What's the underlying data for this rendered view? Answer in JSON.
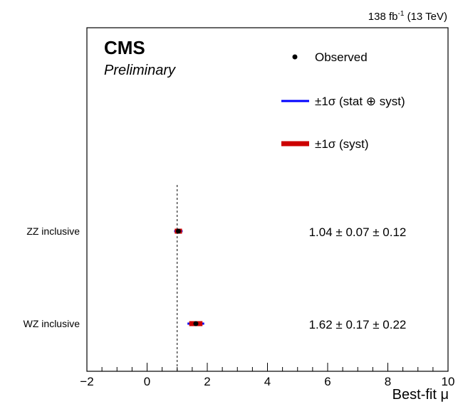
{
  "chart_data": {
    "type": "scatter",
    "lumi": "138 fb",
    "lumi_exp": "-1",
    "energy": "(13 TeV)",
    "experiment": "CMS",
    "status": "Preliminary",
    "xlabel": "Best-fit μ",
    "xlim": [
      -2,
      10
    ],
    "xticks": [
      -2,
      0,
      2,
      4,
      6,
      8,
      10
    ],
    "xtick_labels": [
      "−2",
      "0",
      "2",
      "4",
      "6",
      "8",
      "10"
    ],
    "reference_line": 1,
    "legend": {
      "observed": "Observed",
      "total": "±1σ (stat ⊕ syst)",
      "syst": "±1σ (syst)",
      "placement": "top-right"
    },
    "colors": {
      "total": "#0000ff",
      "syst": "#cc0000",
      "point": "#000000"
    },
    "points": [
      {
        "label": "ZZ inclusive",
        "mu": 1.04,
        "stat": 0.07,
        "syst": 0.12,
        "text": "1.04 ± 0.07 ± 0.12"
      },
      {
        "label": "WZ inclusive",
        "mu": 1.62,
        "stat": 0.17,
        "syst": 0.22,
        "text": "1.62 ± 0.17 ± 0.22"
      }
    ]
  }
}
